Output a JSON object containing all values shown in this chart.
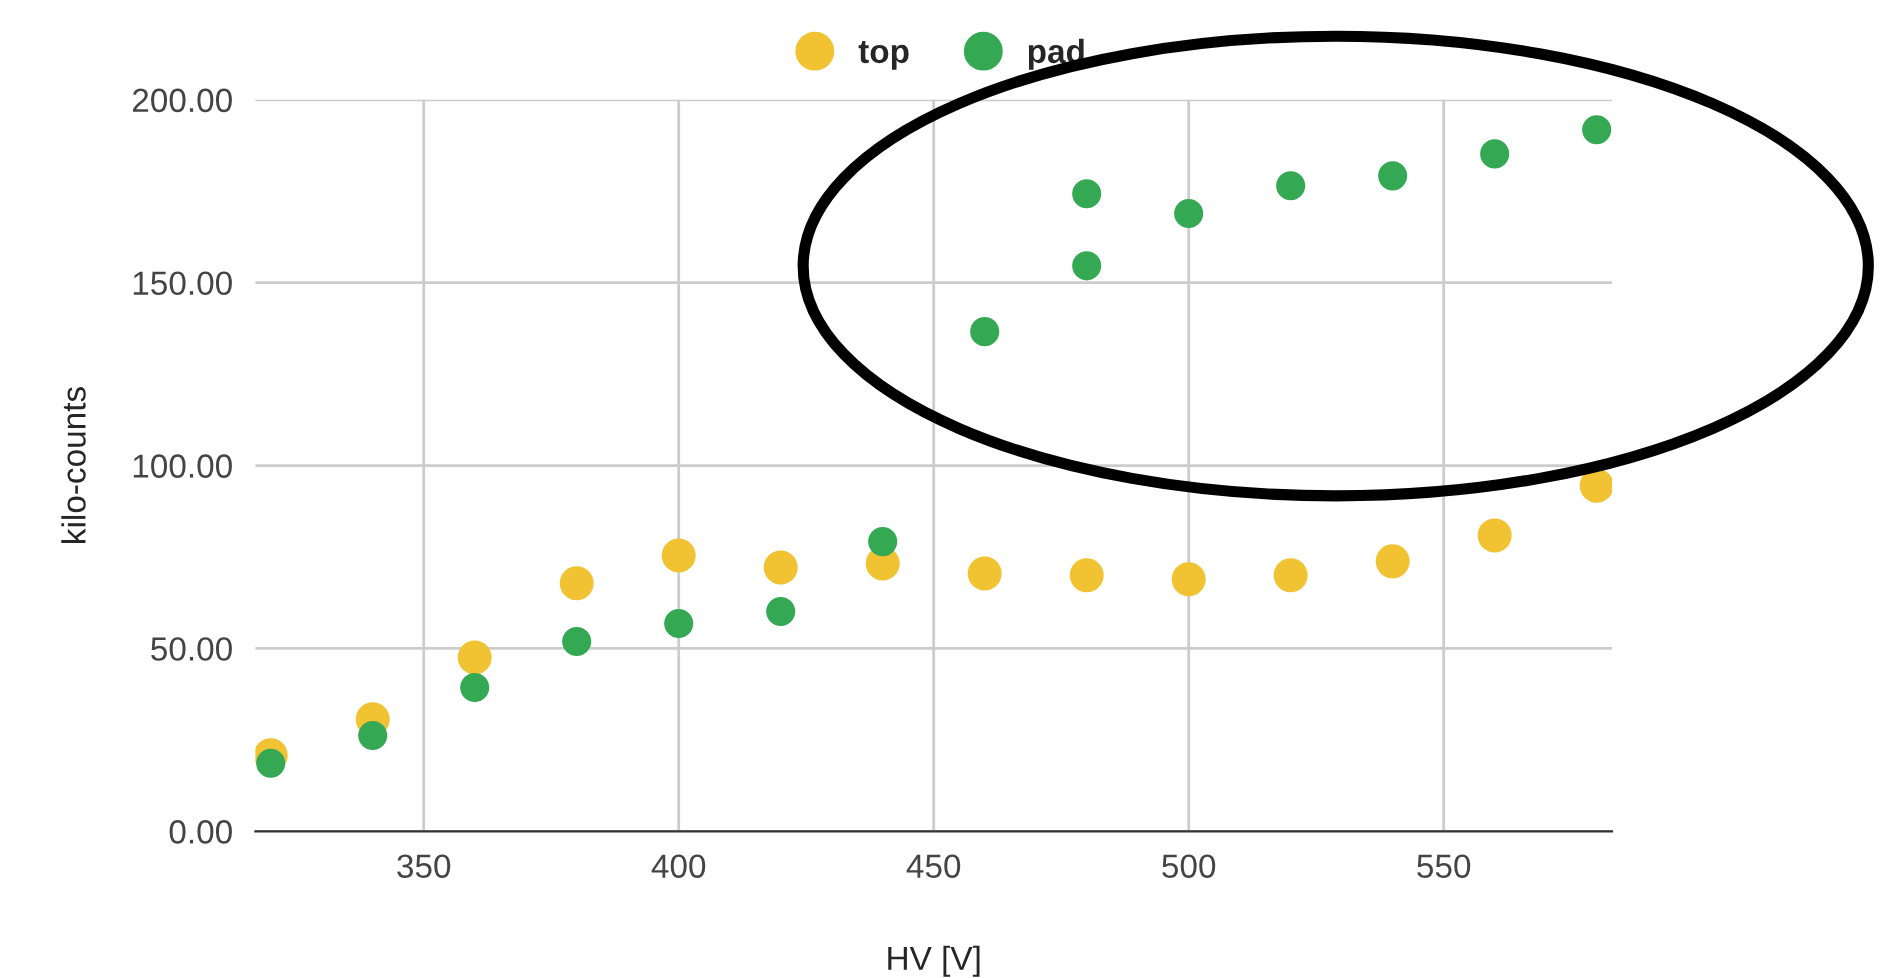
{
  "chart_data": {
    "type": "scatter",
    "xlabel": "HV [V]",
    "ylabel": "kilo-counts",
    "xlim": [
      317,
      583
    ],
    "ylim": [
      0,
      200
    ],
    "xticks": [
      350,
      400,
      450,
      500,
      550
    ],
    "yticks": [
      {
        "value": 0,
        "label": "0.00"
      },
      {
        "value": 50,
        "label": "50.00"
      },
      {
        "value": 100,
        "label": "100.00"
      },
      {
        "value": 150,
        "label": "150.00"
      },
      {
        "value": 200,
        "label": "200.00"
      }
    ],
    "grid": true,
    "legend": "top",
    "marker": "circle",
    "series": [
      {
        "name": "top",
        "color": "#f1c232",
        "x": [
          320,
          340,
          360,
          380,
          400,
          420,
          440,
          460,
          480,
          500,
          520,
          540,
          560,
          580
        ],
        "values": [
          20.8,
          30.6,
          47.5,
          67.8,
          75.4,
          72.1,
          73.2,
          70.5,
          70,
          68.9,
          70,
          73.8,
          80.9,
          94.5
        ]
      },
      {
        "name": "pad",
        "color": "#34a853",
        "x": [
          320,
          340,
          360,
          380,
          400,
          420,
          440,
          460,
          480,
          480,
          500,
          520,
          540,
          560,
          580
        ],
        "values": [
          18.6,
          26.2,
          39.3,
          51.9,
          56.8,
          60.1,
          79.2,
          136.6,
          174.3,
          154.6,
          168.9,
          176.5,
          179.2,
          185.2,
          191.8
        ]
      }
    ]
  }
}
